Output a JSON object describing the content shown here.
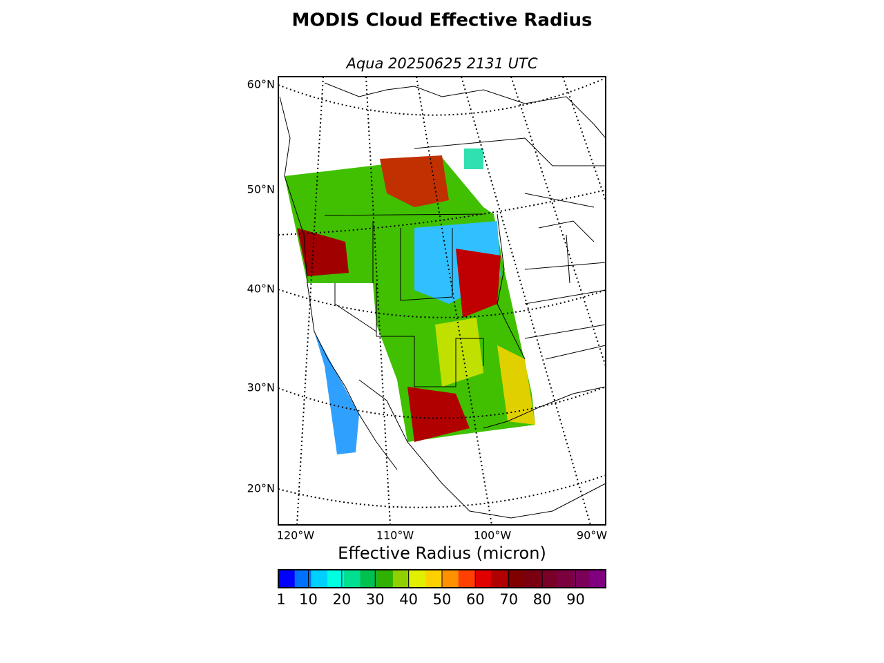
{
  "title": "MODIS Cloud Effective Radius",
  "subtitle": "Aqua 20250625 2131 UTC",
  "map": {
    "lat_labels": [
      "60°N",
      "50°N",
      "40°N",
      "30°N",
      "20°N"
    ],
    "lon_labels": [
      "120°W",
      "110°W",
      "100°W",
      "90°W"
    ]
  },
  "colorbar": {
    "label": "Effective Radius (micron)",
    "clim": [
      1,
      99
    ],
    "ticks": [
      1,
      10,
      20,
      30,
      40,
      50,
      60,
      70,
      80,
      90
    ],
    "colors": [
      "#0000ff",
      "#0070ff",
      "#00d0ff",
      "#00ffe0",
      "#00e090",
      "#00c050",
      "#30b000",
      "#90d000",
      "#e0f000",
      "#ffd000",
      "#ff9000",
      "#ff4000",
      "#e00000",
      "#b00000",
      "#800000",
      "#7a0010",
      "#7a0028",
      "#7a0040",
      "#7a0058",
      "#800080"
    ]
  }
}
